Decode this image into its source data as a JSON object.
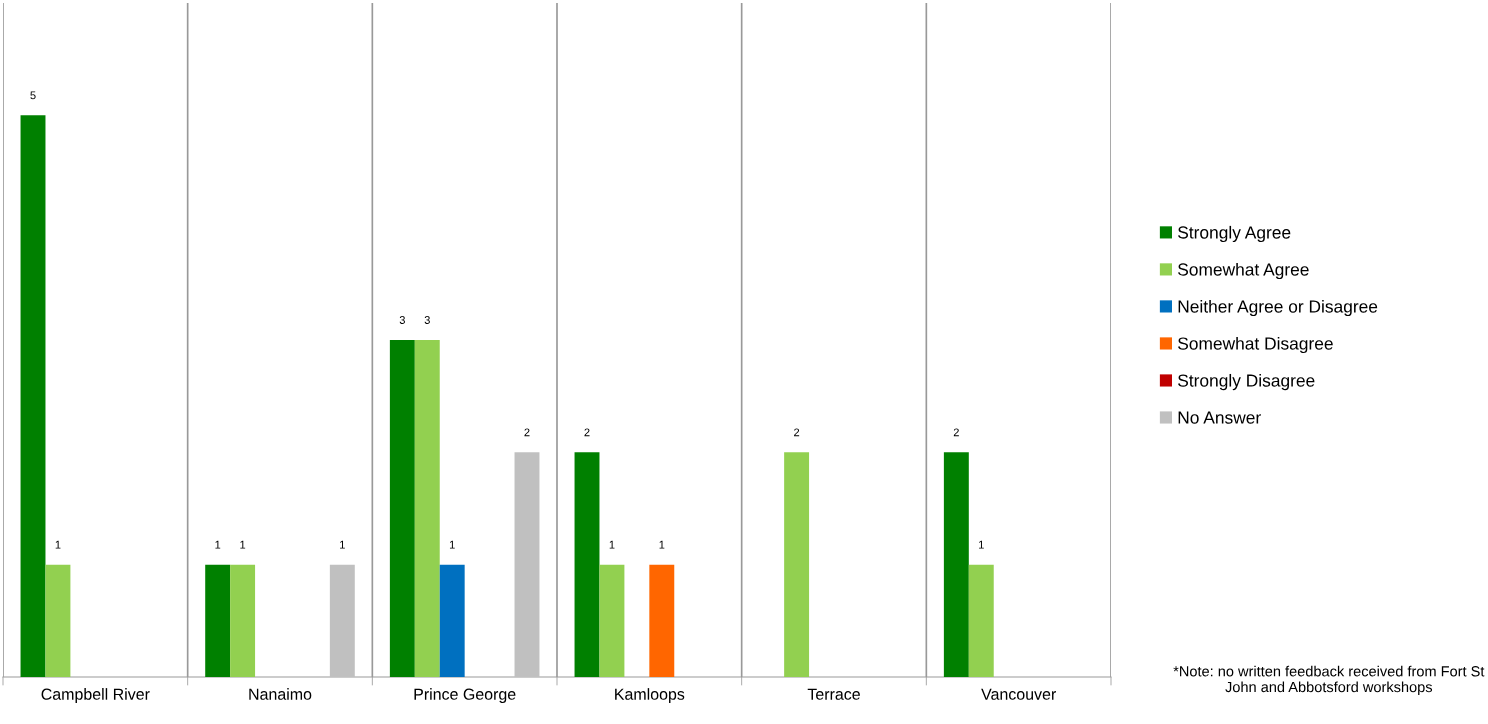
{
  "chart_data": {
    "type": "bar",
    "categories": [
      "Campbell River",
      "Nanaimo",
      "Prince George",
      "Kamloops",
      "Terrace",
      "Vancouver"
    ],
    "series": [
      {
        "name": "Strongly Agree",
        "color": "#008000",
        "values": [
          5,
          1,
          3,
          2,
          null,
          2
        ]
      },
      {
        "name": "Somewhat Agree",
        "color": "#92d050",
        "values": [
          1,
          1,
          3,
          1,
          2,
          1
        ]
      },
      {
        "name": "Neither Agree or Disagree",
        "color": "#0070c0",
        "values": [
          null,
          null,
          1,
          null,
          null,
          null
        ]
      },
      {
        "name": "Somewhat Disagree",
        "color": "#ff6600",
        "values": [
          null,
          null,
          null,
          1,
          null,
          null
        ]
      },
      {
        "name": "Strongly Disagree",
        "color": "#c00000",
        "values": [
          null,
          null,
          null,
          null,
          null,
          null
        ]
      },
      {
        "name": "No Answer",
        "color": "#c0c0c0",
        "values": [
          null,
          1,
          2,
          null,
          null,
          null
        ]
      }
    ],
    "ylim": [
      0,
      6
    ],
    "tick_labels": "x",
    "grid": "x",
    "data_labels": true,
    "legend": "right",
    "annotations": [
      "*Note: no written feedback received from Fort St John and Abbotsford workshops"
    ]
  }
}
